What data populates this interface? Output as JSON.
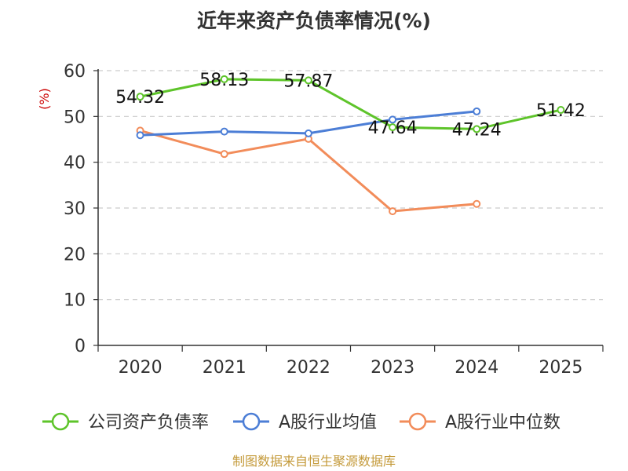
{
  "chart_data": {
    "type": "line",
    "title": "近年来资产负债率情况(%)",
    "ylabel": "(%)",
    "xlabel": "",
    "categories": [
      "2020",
      "2021",
      "2022",
      "2023",
      "2024",
      "2025"
    ],
    "ylim": [
      0,
      60
    ],
    "yticks": [
      "0",
      "10",
      "20",
      "30",
      "40",
      "50",
      "60"
    ],
    "grid": "horizontal-dashed",
    "legend_position": "bottom",
    "series": [
      {
        "name": "公司资产负债率",
        "color": "#5ec42a",
        "values": [
          54.32,
          58.13,
          57.87,
          47.64,
          47.24,
          51.42
        ],
        "labels": [
          "54.32",
          "58.13",
          "57.87",
          "47.64",
          "47.24",
          "51.42"
        ]
      },
      {
        "name": "A股行业均值",
        "color": "#4c7ed6",
        "values": [
          45.9,
          46.7,
          46.3,
          49.3,
          51.1,
          null
        ]
      },
      {
        "name": "A股行业中位数",
        "color": "#f28c5a",
        "values": [
          46.9,
          41.8,
          45.1,
          29.3,
          30.9,
          null
        ]
      }
    ],
    "source": "制图数据来自恒生聚源数据库"
  }
}
